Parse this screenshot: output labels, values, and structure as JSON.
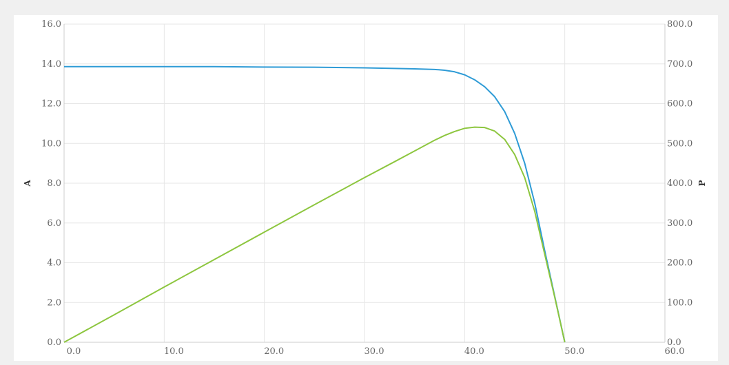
{
  "chart_data": {
    "type": "line",
    "title": "",
    "xlabel": "",
    "ylabel": "A",
    "y2label": "P",
    "xlim": [
      0,
      60
    ],
    "ylim": [
      0,
      16
    ],
    "y2lim": [
      0,
      800
    ],
    "grid": true,
    "x_ticks": [
      0,
      10,
      20,
      30,
      40,
      50,
      60
    ],
    "x_tick_labels": [
      "0.0",
      "10.0",
      "20.0",
      "30.0",
      "40.0",
      "50.0",
      "60.0"
    ],
    "y_ticks": [
      0,
      2,
      4,
      6,
      8,
      10,
      12,
      14,
      16
    ],
    "y_tick_labels": [
      "0.0",
      "2.0",
      "4.0",
      "6.0",
      "8.0",
      "10.0",
      "12.0",
      "14.0",
      "16.0"
    ],
    "y2_ticks": [
      0,
      100,
      200,
      300,
      400,
      500,
      600,
      700,
      800
    ],
    "y2_tick_labels": [
      "0.0",
      "100.0",
      "200.0",
      "300.0",
      "400.0",
      "500.0",
      "600.0",
      "700.0",
      "800.0"
    ],
    "series": [
      {
        "axis": "left",
        "color": "#2e9bd6",
        "x": [
          0,
          5,
          10,
          15,
          20,
          25,
          30,
          33,
          35,
          37,
          38,
          39,
          40,
          41,
          42,
          43,
          44,
          45,
          46,
          47,
          48,
          49,
          50
        ],
        "values": [
          13.86,
          13.86,
          13.86,
          13.86,
          13.84,
          13.83,
          13.8,
          13.77,
          13.75,
          13.72,
          13.68,
          13.6,
          13.45,
          13.2,
          12.85,
          12.35,
          11.6,
          10.5,
          9.0,
          7.0,
          4.6,
          2.3,
          0
        ]
      },
      {
        "axis": "right",
        "color": "#8dc63f",
        "x": [
          0,
          5,
          10,
          15,
          20,
          25,
          30,
          33,
          35,
          37,
          38,
          39,
          40,
          41,
          42,
          43,
          44,
          45,
          46,
          47,
          48,
          49,
          50
        ],
        "values": [
          0,
          69,
          139,
          208,
          277,
          346,
          414,
          454,
          481,
          508,
          520,
          530,
          538,
          541,
          540,
          531,
          510,
          472,
          414,
          329,
          221,
          113,
          0
        ]
      }
    ]
  }
}
